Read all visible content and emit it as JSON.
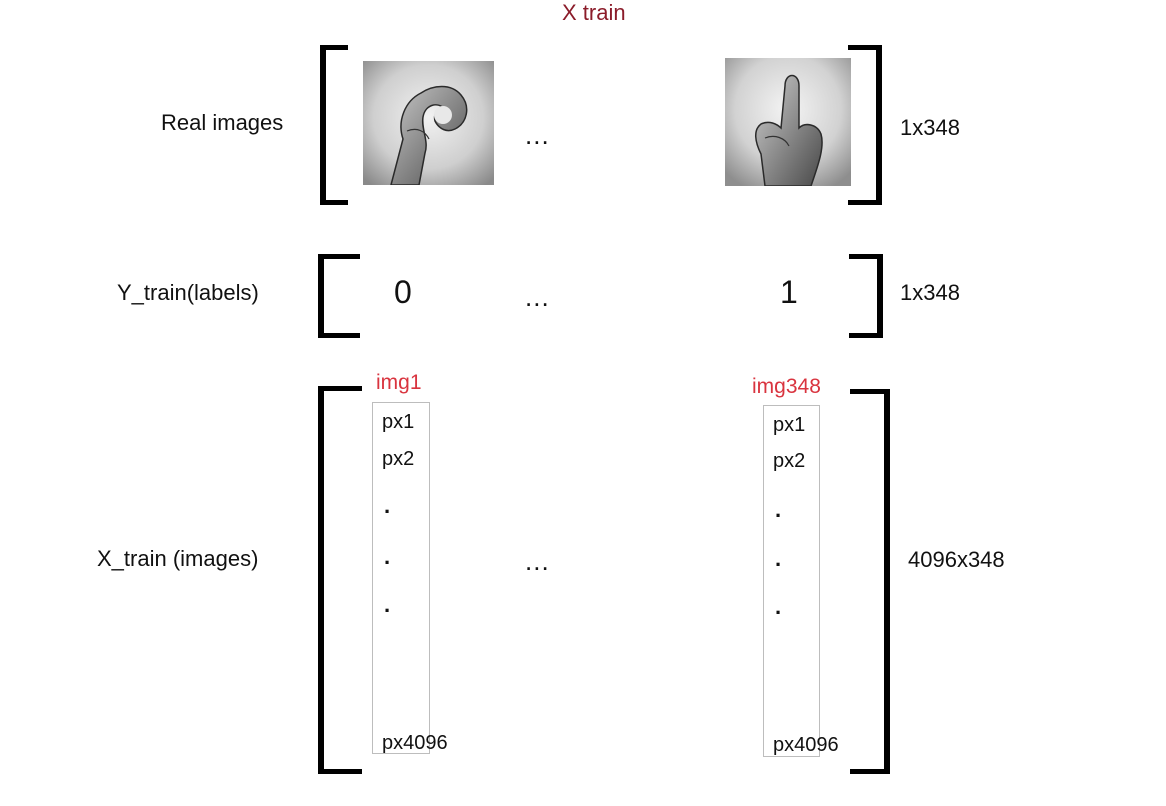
{
  "title": "X train",
  "rows": {
    "real_images": {
      "label": "Real images",
      "dims": "1x348",
      "ellipsis": "..."
    },
    "y_train": {
      "label": "Y_train(labels)",
      "first_value": "0",
      "last_value": "1",
      "ellipsis": "...",
      "dims": "1x348"
    },
    "x_train": {
      "label": "X_train (images)",
      "ellipsis": "...",
      "dims": "4096x348"
    }
  },
  "columns": [
    {
      "name": "img1",
      "px_first": "px1",
      "px_second": "px2",
      "px_dots": [
        ".",
        ".",
        "."
      ],
      "px_last": "px4096"
    },
    {
      "name": "img348",
      "px_first": "px1",
      "px_second": "px2",
      "px_dots": [
        ".",
        ".",
        "."
      ],
      "px_last": "px4096"
    }
  ],
  "colors": {
    "title": "#8b1c2a",
    "img_labels": "#d9343f",
    "column_border": "#bdbdbd"
  },
  "icons": {
    "first_image": "hand-sign-zero-image",
    "last_image": "hand-sign-one-image"
  }
}
